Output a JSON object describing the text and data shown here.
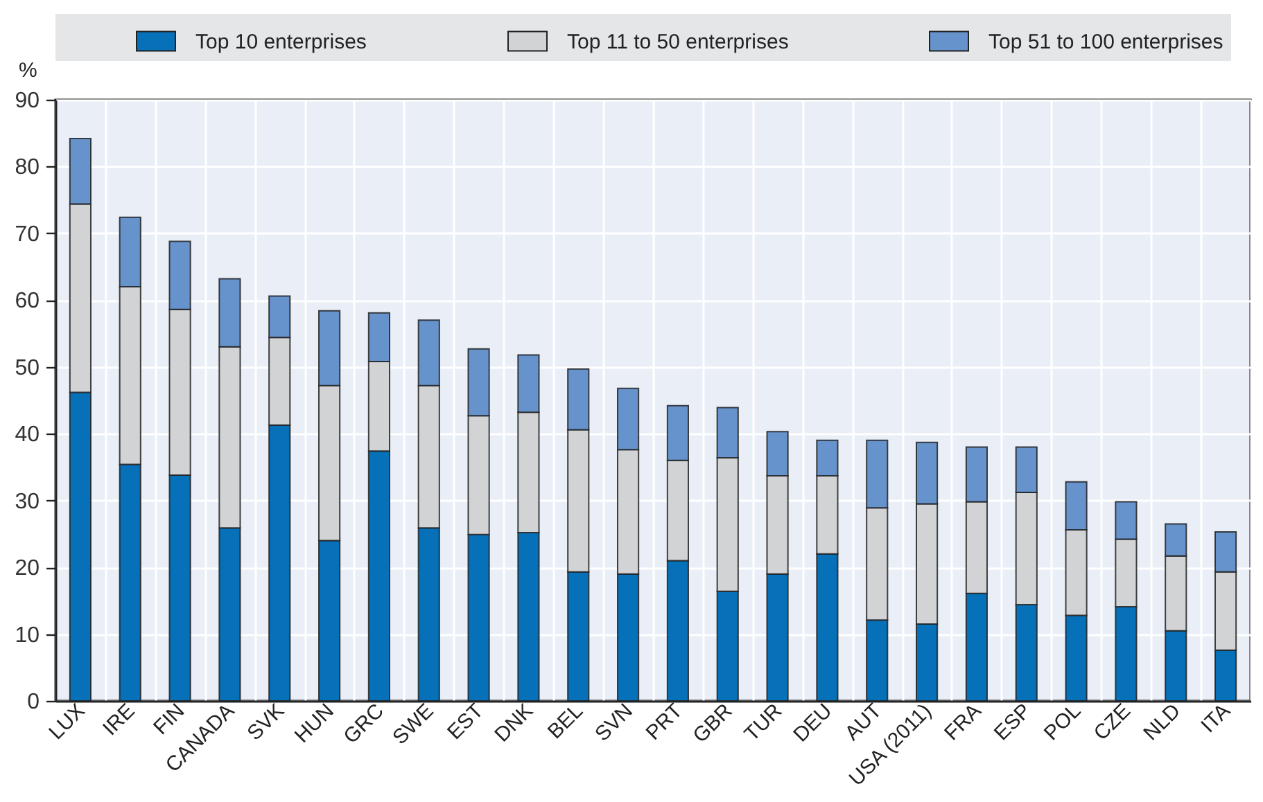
{
  "chart_data": {
    "type": "bar",
    "stacked": true,
    "ylabel": "%",
    "categories": [
      "LUX",
      "IRE",
      "FIN",
      "CANADA",
      "SVK",
      "HUN",
      "GRC",
      "SWE",
      "EST",
      "DNK",
      "BEL",
      "SVN",
      "PRT",
      "GBR",
      "TUR",
      "DEU",
      "AUT",
      "USA (2011)",
      "FRA",
      "ESP",
      "POL",
      "CZE",
      "NLD",
      "ITA"
    ],
    "series": [
      {
        "name": "Top 10 enterprises",
        "color": "#0670b8",
        "values": [
          46.2,
          35.4,
          33.8,
          25.9,
          41.3,
          24.0,
          37.4,
          25.9,
          24.9,
          25.2,
          19.3,
          19.0,
          21.0,
          16.4,
          19.0,
          22.0,
          12.1,
          11.5,
          16.1,
          14.4,
          12.8,
          14.1,
          10.5,
          7.6
        ]
      },
      {
        "name": "Top 11 to 50 enterprises",
        "color": "#d2d3d5",
        "values": [
          28.2,
          26.6,
          24.8,
          27.1,
          13.1,
          23.2,
          13.4,
          21.3,
          17.8,
          18.0,
          21.3,
          18.6,
          15.0,
          20.0,
          14.7,
          11.7,
          16.8,
          18.0,
          13.7,
          16.8,
          12.8,
          10.1,
          11.2,
          11.7
        ]
      },
      {
        "name": "Top 51 to 100 enterprises",
        "color": "#6693cc",
        "values": [
          9.8,
          10.4,
          10.2,
          10.2,
          6.2,
          11.2,
          7.3,
          9.8,
          10.0,
          8.6,
          9.1,
          9.2,
          8.2,
          7.5,
          6.6,
          5.3,
          10.1,
          9.2,
          8.2,
          6.8,
          7.2,
          5.6,
          4.8,
          6.0
        ]
      }
    ],
    "ylim": [
      0,
      90
    ],
    "yticks": [
      0,
      10,
      20,
      30,
      40,
      50,
      60,
      70,
      80,
      90
    ],
    "grid": true,
    "legend": "top"
  }
}
